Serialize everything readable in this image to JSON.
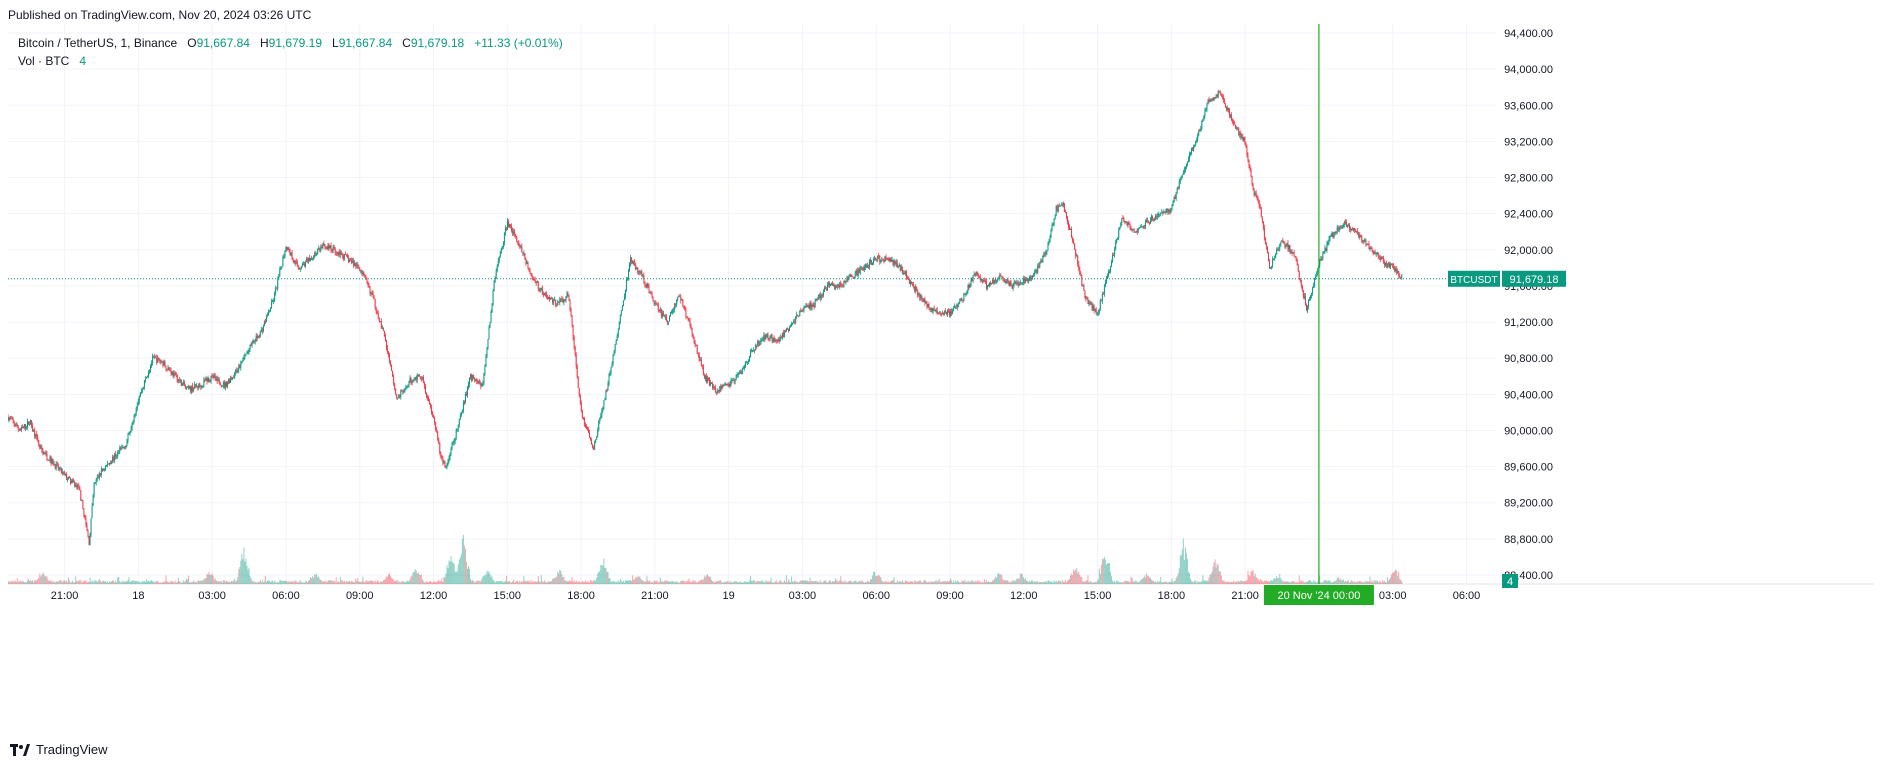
{
  "header": {
    "published": "Published on TradingView.com, Nov 20, 2024 03:26 UTC"
  },
  "legend": {
    "symbol": "Bitcoin / TetherUS, 1, Binance",
    "o_label": "O",
    "o_value": "91,667.84",
    "h_label": "H",
    "h_value": "91,679.19",
    "l_label": "L",
    "l_value": "91,667.84",
    "c_label": "C",
    "c_value": "91,679.18",
    "change": "+11.33 (+0.01%)",
    "volume_label": "Vol · BTC",
    "volume_value": "4"
  },
  "footer": {
    "brand": "TradingView",
    "brand_icon": "tradingview-logo-icon"
  },
  "colors": {
    "up": "#089981",
    "down": "#F23645",
    "crosshair": "#22AB24",
    "grid": "#F0F3FA"
  },
  "chart_data": {
    "type": "candlestick",
    "symbol": "BTCUSDT",
    "interval": "1",
    "exchange": "Binance",
    "last_price": 91679.18,
    "last_price_label": "91,679.18",
    "symbol_label": "BTCUSDT",
    "volume_last_label": "4",
    "y_axis": {
      "ticks": [
        "94,400.00",
        "94,000.00",
        "93,600.00",
        "93,200.00",
        "92,800.00",
        "92,400.00",
        "92,000.00",
        "91,600.00",
        "91,200.00",
        "90,800.00",
        "90,400.00",
        "90,000.00",
        "89,600.00",
        "89,200.00",
        "88,800.00",
        "88,400.00"
      ],
      "tick_values": [
        94400,
        94000,
        93600,
        93200,
        92800,
        92400,
        92000,
        91600,
        91200,
        90800,
        90400,
        90000,
        89600,
        89200,
        88800,
        88400
      ],
      "range": [
        88300,
        94500
      ]
    },
    "x_axis": {
      "ticks": [
        "21:00",
        "18",
        "03:00",
        "06:00",
        "09:00",
        "12:00",
        "15:00",
        "18:00",
        "21:00",
        "19",
        "03:00",
        "06:00",
        "09:00",
        "12:00",
        "15:00",
        "18:00",
        "21:00",
        "00:00",
        "03:00",
        "06:00"
      ],
      "tick_hours": [
        0,
        3,
        6,
        9,
        12,
        15,
        18,
        21,
        24,
        27,
        30,
        33,
        36,
        39,
        42,
        45,
        48,
        51,
        54,
        57
      ],
      "range_hours": [
        -2.3,
        58.2
      ],
      "crosshair_label": "20 Nov '24  00:00",
      "crosshair_hour": 51.0
    },
    "price_path": {
      "hours": [
        -2.3,
        -1.8,
        -1.4,
        -1.0,
        -0.5,
        0.0,
        0.6,
        1.0,
        1.2,
        1.5,
        2.0,
        2.5,
        3.0,
        3.6,
        4.0,
        4.5,
        5.0,
        5.5,
        6.0,
        6.5,
        7.0,
        7.5,
        8.0,
        8.5,
        9.0,
        9.5,
        10.0,
        10.5,
        11.0,
        11.5,
        12.0,
        12.5,
        13.0,
        13.5,
        14.0,
        14.5,
        15.0,
        15.3,
        15.5,
        16.0,
        16.5,
        17.0,
        17.5,
        18.0,
        18.5,
        19.0,
        19.5,
        20.0,
        20.5,
        21.0,
        21.5,
        22.0,
        22.5,
        23.0,
        23.5,
        24.0,
        24.5,
        25.0,
        25.5,
        26.0,
        26.5,
        27.0,
        27.5,
        28.0,
        28.5,
        29.0,
        29.5,
        30.0,
        30.5,
        31.0,
        31.5,
        32.0,
        32.5,
        33.0,
        33.5,
        34.0,
        34.5,
        35.0,
        35.5,
        36.0,
        36.5,
        37.0,
        37.5,
        38.0,
        38.5,
        39.0,
        39.5,
        40.0,
        40.3,
        40.6,
        41.0,
        41.5,
        42.0,
        42.5,
        43.0,
        43.5,
        44.0,
        44.5,
        45.0,
        45.5,
        46.0,
        46.5,
        47.0,
        47.5,
        48.0,
        48.3,
        48.6,
        49.0,
        49.5,
        50.0,
        50.5,
        51.0,
        51.5,
        52.0,
        52.5,
        53.0,
        53.5,
        54.0,
        54.4
      ],
      "closes": [
        90150,
        90000,
        90100,
        89800,
        89650,
        89500,
        89350,
        88750,
        89400,
        89550,
        89700,
        89850,
        90350,
        90800,
        90750,
        90600,
        90450,
        90500,
        90600,
        90500,
        90650,
        90900,
        91100,
        91450,
        92050,
        91800,
        91900,
        92050,
        92000,
        91900,
        91800,
        91500,
        91050,
        90350,
        90550,
        90600,
        90150,
        89700,
        89600,
        90050,
        90600,
        90500,
        91700,
        92300,
        92050,
        91700,
        91500,
        91400,
        91500,
        90200,
        89800,
        90400,
        91100,
        91900,
        91700,
        91400,
        91200,
        91500,
        91100,
        90600,
        90450,
        90500,
        90650,
        90900,
        91050,
        91000,
        91150,
        91350,
        91400,
        91600,
        91600,
        91700,
        91800,
        91900,
        91900,
        91800,
        91600,
        91400,
        91300,
        91300,
        91450,
        91750,
        91600,
        91700,
        91600,
        91650,
        91750,
        92050,
        92450,
        92500,
        92100,
        91450,
        91300,
        91800,
        92350,
        92200,
        92300,
        92400,
        92450,
        92900,
        93200,
        93650,
        93750,
        93400,
        93200,
        92700,
        92450,
        91800,
        92100,
        91950,
        91350,
        91850,
        92150,
        92300,
        92200,
        92050,
        91900,
        91800,
        91700,
        91650,
        91679
      ],
      "volume": {
        "spike_hours": [
          -0.9,
          5.9,
          7.3,
          10.2,
          13.2,
          14.3,
          15.7,
          16.2,
          17.2,
          20.1,
          21.9,
          23.3,
          26.1,
          33.0,
          38.0,
          38.9,
          41.1,
          42.3,
          44.0,
          45.5,
          46.8,
          48.3,
          49.3,
          51.8,
          54.1
        ],
        "spike_values": [
          35,
          38,
          95,
          30,
          32,
          45,
          80,
          120,
          45,
          40,
          70,
          25,
          30,
          35,
          30,
          28,
          55,
          85,
          30,
          110,
          70,
          40,
          25,
          18,
          42
        ],
        "max": 140
      }
    }
  }
}
